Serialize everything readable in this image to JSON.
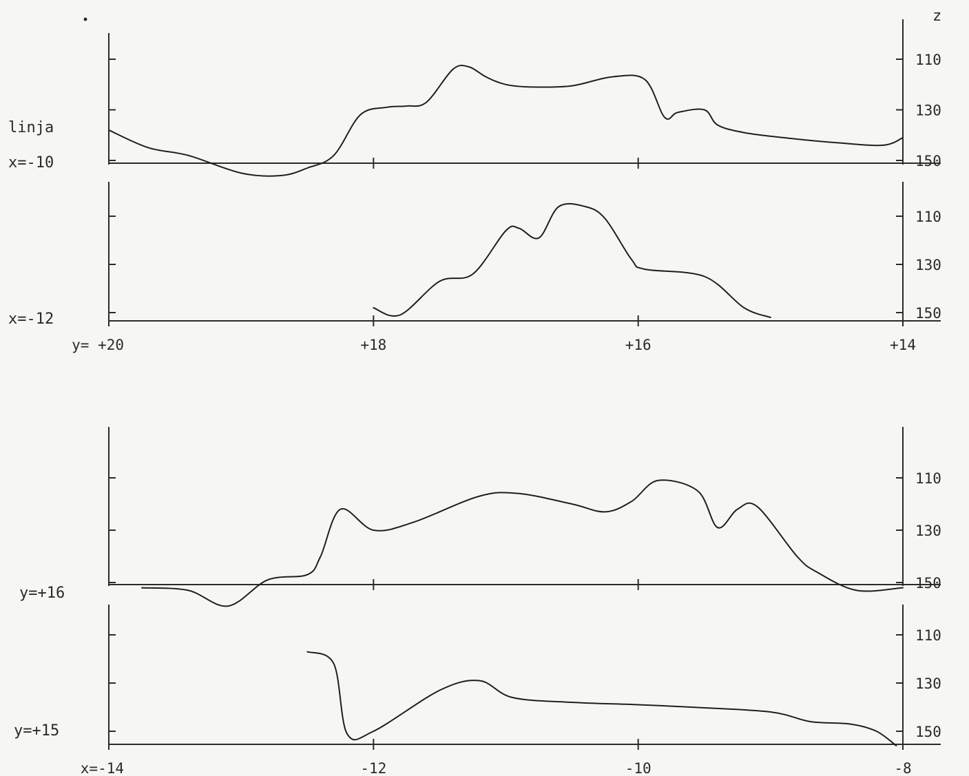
{
  "z_axis_label": "z",
  "chart_data": [
    {
      "type": "line",
      "panel": "top-upper",
      "series_label": "x=-10",
      "extra_label": "linja",
      "x_reversed": true,
      "xlim": [
        20,
        14
      ],
      "ylim": [
        150,
        100
      ],
      "yticks": [
        110,
        130,
        150
      ],
      "ytick_labels": [
        "110",
        "130",
        "150"
      ],
      "x": [
        20,
        19.7,
        19.4,
        19,
        18.7,
        18.5,
        18.3,
        18.1,
        17.9,
        17.75,
        17.6,
        17.4,
        17.28,
        17.15,
        17.0,
        16.8,
        16.5,
        16.2,
        15.95,
        15.8,
        15.7,
        15.5,
        15.4,
        15.2,
        14.9,
        14.5,
        14.15,
        14.0
      ],
      "z": [
        138,
        145,
        148,
        155,
        156,
        153,
        148,
        132,
        129,
        128.5,
        127,
        114,
        113,
        117,
        120,
        121,
        120.5,
        117,
        118,
        133,
        131,
        130,
        136,
        139,
        141,
        143,
        144,
        141
      ]
    },
    {
      "type": "line",
      "panel": "top-lower",
      "series_label": "x=-12",
      "x_reversed": true,
      "xlim": [
        20,
        14
      ],
      "ylim": [
        155,
        100
      ],
      "yticks": [
        110,
        130,
        150
      ],
      "ytick_labels": [
        "110",
        "130",
        "150"
      ],
      "xticks": [
        20,
        18,
        16,
        14
      ],
      "xtick_labels": [
        "y= +20",
        "+18",
        "+16",
        "+14"
      ],
      "x": [
        18.0,
        17.8,
        17.5,
        17.25,
        17.0,
        16.9,
        16.75,
        16.6,
        16.4,
        16.25,
        16.05,
        15.95,
        15.5,
        15.2,
        15.0
      ],
      "z": [
        148,
        151,
        137,
        134,
        116,
        115,
        119,
        106,
        106,
        111,
        128,
        132,
        135,
        148,
        152
      ]
    },
    {
      "type": "line",
      "panel": "bottom-upper",
      "series_label": "y=+16",
      "x_reversed": false,
      "xlim": [
        -14,
        -8
      ],
      "ylim": [
        150,
        100
      ],
      "yticks": [
        110,
        130,
        150
      ],
      "ytick_labels": [
        "110",
        "130",
        "150"
      ],
      "x": [
        -13.75,
        -13.4,
        -13.1,
        -12.8,
        -12.5,
        -12.4,
        -12.25,
        -12.0,
        -11.7,
        -11.2,
        -10.9,
        -10.5,
        -10.25,
        -10.05,
        -9.85,
        -9.55,
        -9.4,
        -9.25,
        -9.1,
        -8.8,
        -8.65,
        -8.35,
        -8.0
      ],
      "z": [
        152,
        153,
        159,
        149,
        147,
        140,
        122,
        130,
        127,
        117,
        116,
        120,
        123,
        119,
        111,
        115,
        129,
        122,
        121,
        140,
        146,
        153,
        152
      ]
    },
    {
      "type": "line",
      "panel": "bottom-lower",
      "series_label": "y=+15",
      "x_reversed": false,
      "xlim": [
        -14,
        -8
      ],
      "ylim": [
        155,
        100
      ],
      "yticks": [
        110,
        130,
        150
      ],
      "ytick_labels": [
        "110",
        "130",
        "150"
      ],
      "xticks": [
        -14,
        -12,
        -10,
        -8
      ],
      "xtick_labels": [
        "x=-14",
        "-12",
        "-10",
        "-8"
      ],
      "x": [
        -12.5,
        -12.3,
        -12.2,
        -12.0,
        -11.5,
        -11.2,
        -10.95,
        -10.5,
        -10.0,
        -9.6,
        -9.0,
        -8.7,
        -8.4,
        -8.2,
        -8.05
      ],
      "z": [
        117,
        122,
        151,
        150,
        133,
        129,
        136,
        138,
        139,
        140,
        142,
        146,
        147,
        150,
        156
      ]
    }
  ]
}
